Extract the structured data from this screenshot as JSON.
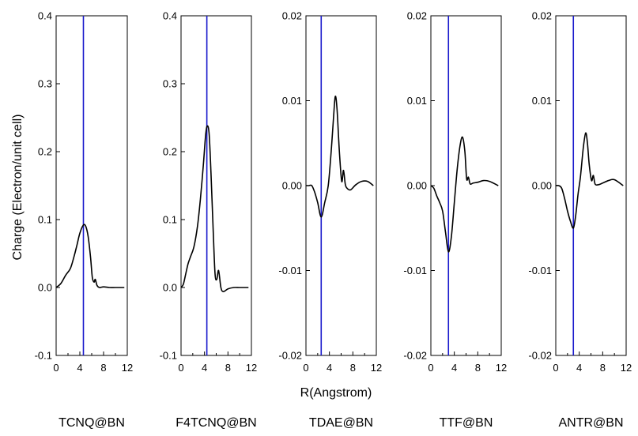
{
  "figure": {
    "ylabel": "Charge (Electron/unit cell)",
    "xlabel": "R(Angstrom)"
  },
  "chart_data": [
    {
      "type": "line",
      "name": "TCNQ@BN",
      "xlim": [
        0,
        12
      ],
      "ylim": [
        -0.1,
        0.4
      ],
      "xticks": [
        0,
        4,
        8,
        12
      ],
      "xminor": [
        2,
        6,
        10
      ],
      "yticks": [
        -0.1,
        0.0,
        0.1,
        0.2,
        0.3,
        0.4
      ],
      "ytick_labels": [
        "-0.1",
        "0.0",
        "0.1",
        "0.2",
        "0.3",
        "0.4"
      ],
      "vline": 4.6,
      "line_color": "#000000",
      "vline_color": "#1a1acc",
      "series": [
        {
          "x": [
            0.0,
            0.8,
            1.6,
            2.4,
            3.0,
            3.5,
            4.0,
            4.6,
            5.0,
            5.4,
            5.8,
            6.1,
            6.4,
            6.6,
            6.9,
            7.3,
            8.0,
            9.0,
            10.0,
            11.5
          ],
          "y": [
            0.0,
            0.006,
            0.018,
            0.028,
            0.045,
            0.062,
            0.08,
            0.092,
            0.09,
            0.075,
            0.045,
            0.015,
            0.008,
            0.012,
            0.003,
            0.0,
            0.001,
            0.0,
            0.0,
            0.0
          ]
        }
      ]
    },
    {
      "type": "line",
      "name": "F4TCNQ@BN",
      "xlim": [
        0,
        12
      ],
      "ylim": [
        -0.1,
        0.4
      ],
      "xticks": [
        0,
        4,
        8,
        12
      ],
      "xminor": [
        2,
        6,
        10
      ],
      "yticks": [
        -0.1,
        0.0,
        0.1,
        0.2,
        0.3,
        0.4
      ],
      "ytick_labels": [
        "-0.1",
        "0.0",
        "0.1",
        "0.2",
        "0.3",
        "0.4"
      ],
      "vline": 4.4,
      "line_color": "#000000",
      "vline_color": "#1a1acc",
      "series": [
        {
          "x": [
            0.0,
            0.4,
            0.8,
            1.2,
            1.6,
            2.2,
            2.8,
            3.3,
            3.8,
            4.2,
            4.5,
            4.8,
            5.1,
            5.5,
            5.8,
            6.1,
            6.4,
            6.8,
            7.2,
            8.0,
            9.0,
            10.0,
            11.5
          ],
          "y": [
            0.0,
            0.005,
            0.02,
            0.035,
            0.045,
            0.06,
            0.09,
            0.13,
            0.18,
            0.225,
            0.238,
            0.225,
            0.17,
            0.08,
            0.02,
            0.012,
            0.025,
            0.0,
            -0.006,
            -0.002,
            0.0,
            0.0,
            0.0
          ]
        }
      ]
    },
    {
      "type": "line",
      "name": "TDAE@BN",
      "xlim": [
        0,
        12
      ],
      "ylim": [
        -0.02,
        0.02
      ],
      "xticks": [
        0,
        4,
        8,
        12
      ],
      "xminor": [
        2,
        6,
        10
      ],
      "yticks": [
        -0.02,
        -0.01,
        0.0,
        0.01,
        0.02
      ],
      "ytick_labels": [
        "-0.02",
        "-0.01",
        "0.00",
        "0.01",
        "0.02"
      ],
      "vline": 2.6,
      "line_color": "#000000",
      "vline_color": "#1a1acc",
      "series": [
        {
          "x": [
            0.0,
            0.5,
            1.0,
            1.5,
            2.0,
            2.6,
            3.2,
            3.8,
            4.3,
            4.7,
            5.0,
            5.3,
            5.7,
            6.1,
            6.4,
            6.7,
            7.0,
            7.6,
            8.5,
            9.5,
            10.5,
            11.5
          ],
          "y": [
            0.0,
            0.0,
            0.0,
            -0.0008,
            -0.002,
            -0.0037,
            -0.002,
            0.0,
            0.004,
            0.008,
            0.0105,
            0.009,
            0.004,
            0.0005,
            0.0018,
            0.0002,
            -0.0003,
            -0.0005,
            0.0001,
            0.0005,
            0.0005,
            0.0
          ]
        }
      ]
    },
    {
      "type": "line",
      "name": "TTF@BN",
      "xlim": [
        0,
        12
      ],
      "ylim": [
        -0.02,
        0.02
      ],
      "xticks": [
        0,
        4,
        8,
        12
      ],
      "xminor": [
        2,
        6,
        10
      ],
      "yticks": [
        -0.02,
        -0.01,
        0.0,
        0.01,
        0.02
      ],
      "ytick_labels": [
        "-0.02",
        "-0.01",
        "0.00",
        "0.01",
        "0.02"
      ],
      "vline": 3.0,
      "line_color": "#000000",
      "vline_color": "#1a1acc",
      "series": [
        {
          "x": [
            0.0,
            0.5,
            1.0,
            1.5,
            2.0,
            2.5,
            3.0,
            3.5,
            4.0,
            4.5,
            5.0,
            5.4,
            5.8,
            6.1,
            6.4,
            6.7,
            7.2,
            8.0,
            9.0,
            10.0,
            11.5
          ],
          "y": [
            0.0,
            -0.0003,
            -0.0012,
            -0.002,
            -0.003,
            -0.0055,
            -0.0078,
            -0.006,
            -0.002,
            0.002,
            0.0048,
            0.0057,
            0.004,
            0.0008,
            0.001,
            0.0002,
            0.0003,
            0.0004,
            0.0006,
            0.0005,
            0.0
          ]
        }
      ]
    },
    {
      "type": "line",
      "name": "ANTR@BN",
      "xlim": [
        0,
        12
      ],
      "ylim": [
        -0.02,
        0.02
      ],
      "xticks": [
        0,
        4,
        8,
        12
      ],
      "xminor": [
        2,
        6,
        10
      ],
      "yticks": [
        -0.02,
        -0.01,
        0.0,
        0.01,
        0.02
      ],
      "ytick_labels": [
        "-0.02",
        "-0.01",
        "0.00",
        "0.01",
        "0.02"
      ],
      "vline": 3.0,
      "line_color": "#000000",
      "vline_color": "#1a1acc",
      "series": [
        {
          "x": [
            0.0,
            0.5,
            1.0,
            1.5,
            2.0,
            2.5,
            3.0,
            3.4,
            3.8,
            4.2,
            4.7,
            5.1,
            5.4,
            5.7,
            6.1,
            6.4,
            6.7,
            7.2,
            8.0,
            9.0,
            10.0,
            11.5
          ],
          "y": [
            0.0,
            0.0,
            -0.0003,
            -0.0015,
            -0.003,
            -0.0042,
            -0.005,
            -0.0035,
            -0.001,
            0.001,
            0.0045,
            0.0062,
            0.005,
            0.0025,
            0.0006,
            0.0012,
            0.0002,
            0.0001,
            0.0003,
            0.0006,
            0.0007,
            0.0
          ]
        }
      ]
    }
  ]
}
